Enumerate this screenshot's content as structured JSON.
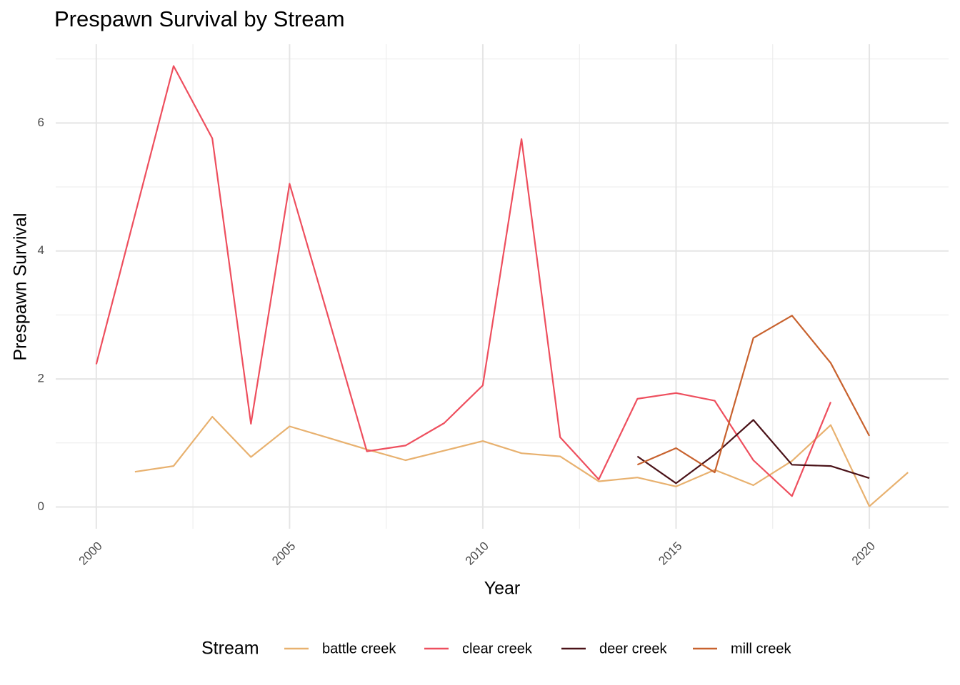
{
  "chart_data": {
    "type": "line",
    "title": "Prespawn Survival by Stream",
    "x_label": "Year",
    "y_label": "Prespawn Survival",
    "legend_title": "Stream",
    "legend_position": "bottom",
    "grid": true,
    "x": [
      2000,
      2001,
      2002,
      2003,
      2004,
      2005,
      2006,
      2007,
      2008,
      2009,
      2010,
      2011,
      2012,
      2013,
      2014,
      2015,
      2016,
      2017,
      2018,
      2019,
      2020,
      2021
    ],
    "xlim": [
      1998.95,
      2022.05
    ],
    "xticks": [
      2000,
      2005,
      2010,
      2015,
      2020
    ],
    "ylim": [
      -0.34,
      7.23
    ],
    "yticks": [
      0,
      2,
      4,
      6
    ],
    "series": [
      {
        "name": "battle creek",
        "color": "#E8B16F",
        "values": [
          null,
          0.55,
          0.64,
          1.41,
          0.78,
          1.26,
          1.08,
          0.9,
          0.73,
          0.88,
          1.03,
          0.84,
          0.79,
          0.4,
          0.46,
          0.32,
          0.58,
          0.34,
          0.72,
          1.28,
          0.01,
          0.54
        ]
      },
      {
        "name": "clear creek",
        "color": "#EE4F5E",
        "values": [
          2.23,
          4.56,
          6.89,
          5.76,
          1.3,
          5.05,
          2.97,
          0.87,
          0.96,
          1.31,
          1.9,
          5.75,
          1.09,
          0.43,
          1.69,
          1.78,
          1.66,
          0.73,
          0.17,
          1.64,
          null,
          null
        ]
      },
      {
        "name": "deer creek",
        "color": "#4A1218",
        "values": [
          null,
          null,
          null,
          null,
          null,
          null,
          null,
          null,
          null,
          null,
          null,
          null,
          null,
          null,
          0.79,
          0.37,
          0.82,
          1.36,
          0.66,
          0.64,
          0.45,
          null
        ]
      },
      {
        "name": "mill creek",
        "color": "#C8622E",
        "values": [
          null,
          null,
          null,
          null,
          null,
          null,
          null,
          null,
          null,
          null,
          null,
          null,
          null,
          null,
          0.66,
          0.92,
          0.54,
          2.64,
          2.99,
          2.25,
          1.11,
          null
        ]
      }
    ]
  }
}
